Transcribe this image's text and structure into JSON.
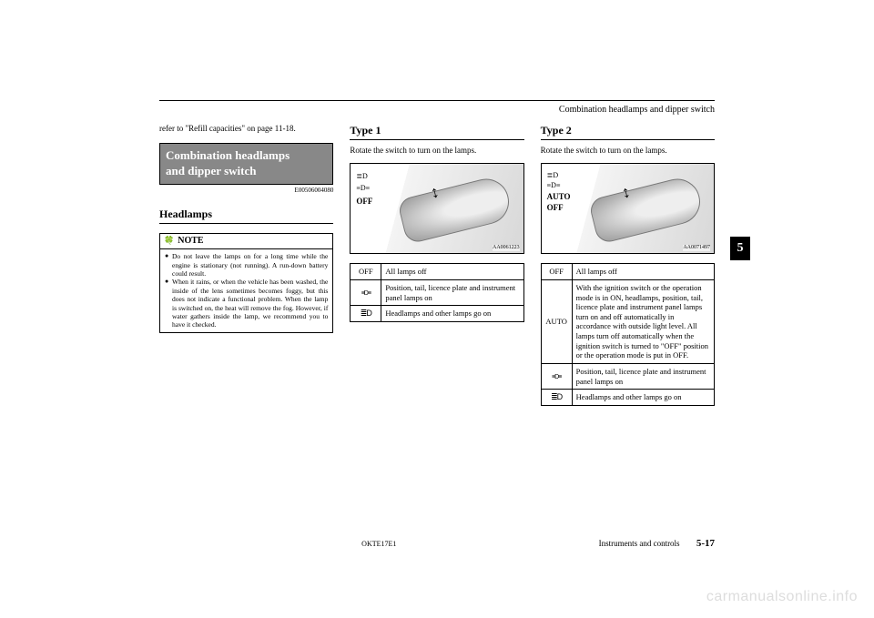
{
  "header": {
    "running_title": "Combination headlamps and dipper switch"
  },
  "col1": {
    "ref_text": "refer to \"Refill capacities\" on page 11-18.",
    "section_title_line1": "Combination headlamps",
    "section_title_line2": "and dipper switch",
    "section_code": "E00506004080",
    "subsection": "Headlamps",
    "note_label": "NOTE",
    "note_items": [
      "Do not leave the lamps on for a long time while the engine is stationary (not running). A run-down battery could result.",
      "When it rains, or when the vehicle has been washed, the inside of the lens sometimes becomes foggy, but this does not indicate a functional problem.\nWhen the lamp is switched on, the heat will remove the fog. However, if water gathers inside the lamp, we recommend you to have it checked."
    ]
  },
  "col2": {
    "type_heading": "Type 1",
    "type_desc": "Rotate the switch to turn on the lamps.",
    "illus_labels": [
      "≣D",
      "≡D≡",
      "OFF"
    ],
    "illus_code": "AA0061223",
    "table": [
      {
        "sym": "OFF",
        "desc": "All lamps off"
      },
      {
        "sym": "park",
        "desc": "Position, tail, licence plate and instrument panel lamps on"
      },
      {
        "sym": "head",
        "desc": "Headlamps and other lamps go on"
      }
    ]
  },
  "col3": {
    "type_heading": "Type 2",
    "type_desc": "Rotate the switch to turn on the lamps.",
    "illus_labels": [
      "≣D",
      "≡D≡",
      "AUTO",
      "OFF"
    ],
    "illus_code": "AA0071497",
    "table": [
      {
        "sym": "OFF",
        "desc": "All lamps off"
      },
      {
        "sym": "AUTO",
        "desc": "With the ignition switch or the operation mode is in ON, headlamps, position, tail, licence plate and instrument panel lamps turn on and off automatically in accordance with outside light level. All lamps turn off automatically when the ignition switch is turned to \"OFF\" position or the operation mode is put in OFF."
      },
      {
        "sym": "park",
        "desc": "Position, tail, licence plate and instrument panel lamps on"
      },
      {
        "sym": "head",
        "desc": "Headlamps and other lamps go on"
      }
    ]
  },
  "tab": "5",
  "footer": {
    "center": "OKTE17E1",
    "right_label": "Instruments and controls",
    "page": "5-17"
  },
  "watermark": "carmanualsonline.info"
}
